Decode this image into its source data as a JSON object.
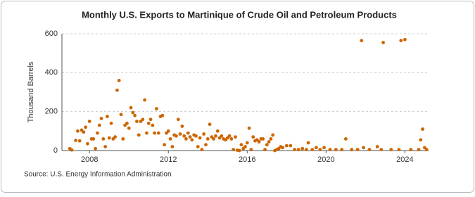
{
  "chart_data": {
    "type": "scatter",
    "title": "Monthly U.S. Exports to Martinique of Crude Oil and Petroleum Products",
    "y_label": "Thousand Barrels",
    "source": "Source: U.S. Energy Information Administration",
    "color": "#cc6600",
    "grid": true,
    "xlim": [
      2006.6,
      2025.2
    ],
    "ylim": [
      0,
      600
    ],
    "xticks": [
      2008,
      2012,
      2016,
      2020,
      2024
    ],
    "yticks": [
      0,
      200,
      400,
      600
    ],
    "x": [
      2007.0,
      2007.1,
      2007.3,
      2007.4,
      2007.5,
      2007.6,
      2007.7,
      2007.8,
      2007.9,
      2008.0,
      2008.1,
      2008.2,
      2008.3,
      2008.4,
      2008.5,
      2008.6,
      2008.7,
      2008.8,
      2008.9,
      2009.0,
      2009.1,
      2009.2,
      2009.3,
      2009.4,
      2009.5,
      2009.6,
      2009.7,
      2009.8,
      2009.9,
      2010.0,
      2010.1,
      2010.2,
      2010.3,
      2010.4,
      2010.5,
      2010.6,
      2010.7,
      2010.8,
      2010.9,
      2011.0,
      2011.1,
      2011.2,
      2011.3,
      2011.4,
      2011.5,
      2011.6,
      2011.7,
      2011.8,
      2011.9,
      2012.0,
      2012.1,
      2012.2,
      2012.3,
      2012.4,
      2012.5,
      2012.6,
      2012.7,
      2012.8,
      2012.9,
      2013.0,
      2013.1,
      2013.2,
      2013.3,
      2013.4,
      2013.5,
      2013.6,
      2013.7,
      2013.8,
      2013.9,
      2014.0,
      2014.1,
      2014.2,
      2014.3,
      2014.4,
      2014.5,
      2014.6,
      2014.7,
      2014.8,
      2014.9,
      2015.0,
      2015.1,
      2015.2,
      2015.3,
      2015.4,
      2015.5,
      2015.6,
      2015.7,
      2015.8,
      2015.9,
      2016.0,
      2016.1,
      2016.2,
      2016.3,
      2016.4,
      2016.5,
      2016.6,
      2016.7,
      2016.8,
      2016.9,
      2017.0,
      2017.1,
      2017.2,
      2017.3,
      2017.4,
      2017.5,
      2017.6,
      2017.7,
      2017.8,
      2018.0,
      2018.2,
      2018.4,
      2018.6,
      2018.8,
      2019.0,
      2019.1,
      2019.3,
      2019.5,
      2019.7,
      2019.9,
      2020.2,
      2020.5,
      2020.8,
      2021.0,
      2021.3,
      2021.6,
      2021.8,
      2021.9,
      2022.2,
      2022.6,
      2022.8,
      2022.9,
      2023.3,
      2023.7,
      2023.8,
      2024.0,
      2024.3,
      2024.7,
      2024.8,
      2024.9,
      2025.0,
      2025.1
    ],
    "values": [
      10,
      3,
      52,
      100,
      50,
      105,
      95,
      120,
      35,
      150,
      60,
      60,
      10,
      90,
      130,
      165,
      60,
      20,
      175,
      65,
      140,
      60,
      70,
      310,
      360,
      185,
      60,
      130,
      140,
      115,
      220,
      195,
      180,
      150,
      80,
      150,
      160,
      260,
      90,
      140,
      160,
      130,
      90,
      215,
      90,
      175,
      180,
      30,
      90,
      100,
      60,
      20,
      80,
      75,
      160,
      85,
      125,
      75,
      60,
      90,
      70,
      55,
      80,
      75,
      20,
      65,
      5,
      85,
      30,
      60,
      135,
      70,
      60,
      75,
      100,
      65,
      75,
      60,
      55,
      65,
      75,
      60,
      5,
      70,
      2,
      0,
      30,
      10,
      20,
      40,
      115,
      5,
      70,
      50,
      55,
      45,
      60,
      60,
      5,
      30,
      45,
      60,
      80,
      0,
      5,
      10,
      20,
      15,
      25,
      25,
      5,
      5,
      10,
      5,
      40,
      5,
      15,
      5,
      15,
      5,
      5,
      5,
      60,
      5,
      5,
      565,
      15,
      5,
      20,
      5,
      555,
      5,
      5,
      565,
      570,
      5,
      5,
      55,
      110,
      15,
      5
    ]
  }
}
